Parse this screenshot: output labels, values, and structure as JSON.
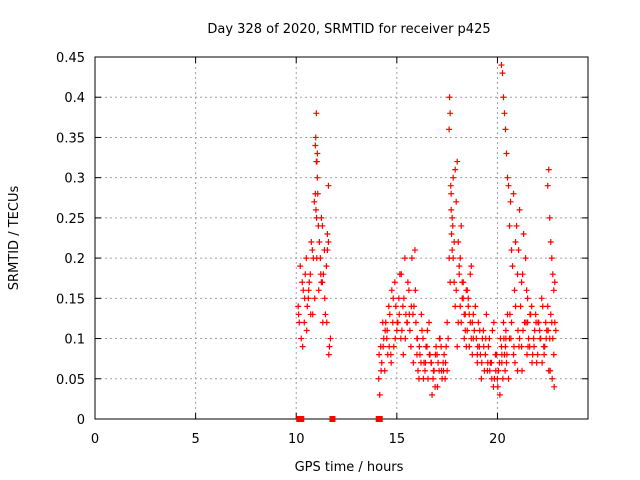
{
  "chart_data": {
    "type": "scatter",
    "title": "Day 328 of 2020, SRMTID for receiver p425",
    "xlabel": "GPS time / hours",
    "ylabel": "SRMTID / TECUs",
    "xlim": [
      0,
      24.5
    ],
    "ylim": [
      0,
      0.45
    ],
    "xticks": [
      0,
      5,
      10,
      15,
      20
    ],
    "xtick_labels": [
      "0",
      "5",
      "10",
      "15",
      "20"
    ],
    "yticks": [
      0,
      0.05,
      0.1,
      0.15,
      0.2,
      0.25,
      0.3,
      0.35,
      0.4,
      0.45
    ],
    "ytick_labels": [
      "0",
      "0.05",
      "0.1",
      "0.15",
      "0.2",
      "0.25",
      "0.3",
      "0.35",
      "0.4",
      "0.45"
    ],
    "grid": true,
    "marker": "plus",
    "color": "#ff0000",
    "gap_markers": {
      "description": "zero-value squares",
      "x": [
        10.15,
        10.25,
        11.8,
        14.1,
        14.15
      ],
      "y": [
        0,
        0,
        0,
        0,
        0
      ]
    },
    "series": [
      {
        "name": "SRMTID",
        "x": [
          10.1,
          10.2,
          10.3,
          10.4,
          10.5,
          10.6,
          10.7,
          10.8,
          10.9,
          11.0,
          11.1,
          11.2,
          11.3,
          11.4,
          11.5,
          11.6,
          11.7,
          10.15,
          10.25,
          10.35,
          10.45,
          10.55,
          10.65,
          10.75,
          10.85,
          10.95,
          11.05,
          11.15,
          11.25,
          11.35,
          11.45,
          11.55,
          11.65,
          10.12,
          10.32,
          10.52,
          10.72,
          10.92,
          11.12,
          11.32,
          11.52,
          10.42,
          10.62,
          10.82,
          11.02,
          11.22,
          11.42,
          11.62,
          10.95,
          10.97,
          11.0,
          11.03,
          11.05,
          11.07,
          10.98,
          11.01,
          11.55,
          11.6,
          11.25,
          11.3,
          14.1,
          14.2,
          14.3,
          14.4,
          14.5,
          14.6,
          14.7,
          14.8,
          14.9,
          15.0,
          15.1,
          15.2,
          15.3,
          15.4,
          15.5,
          15.6,
          15.7,
          15.8,
          15.9,
          16.0,
          14.15,
          14.25,
          14.35,
          14.45,
          14.55,
          14.65,
          14.75,
          14.85,
          14.95,
          15.05,
          15.15,
          15.25,
          15.35,
          15.45,
          15.55,
          15.65,
          15.75,
          15.85,
          15.95,
          14.12,
          14.32,
          14.52,
          14.72,
          14.92,
          15.12,
          15.32,
          15.52,
          15.72,
          15.92,
          14.22,
          14.42,
          14.62,
          14.82,
          15.02,
          15.22,
          15.42,
          15.62,
          15.82,
          16.0,
          16.1,
          16.2,
          16.3,
          16.4,
          16.5,
          16.6,
          16.7,
          16.8,
          16.9,
          17.0,
          17.1,
          17.2,
          17.3,
          17.4,
          17.5,
          16.05,
          16.15,
          16.25,
          16.35,
          16.45,
          16.55,
          16.65,
          16.75,
          16.85,
          16.95,
          17.05,
          17.15,
          17.25,
          17.35,
          17.45,
          16.02,
          16.22,
          16.42,
          16.62,
          16.82,
          17.02,
          17.22,
          17.42,
          16.12,
          16.32,
          16.52,
          16.72,
          16.92,
          17.12,
          17.32,
          17.5,
          17.6,
          17.7,
          17.8,
          17.9,
          18.0,
          18.1,
          18.2,
          18.3,
          18.4,
          18.5,
          18.6,
          18.7,
          18.8,
          18.9,
          19.0,
          17.55,
          17.65,
          17.75,
          17.85,
          17.95,
          18.05,
          18.15,
          18.25,
          18.35,
          18.45,
          18.55,
          18.65,
          18.75,
          18.85,
          18.95,
          17.6,
          17.62,
          17.65,
          17.68,
          17.7,
          17.72,
          17.75,
          17.78,
          17.8,
          17.85,
          17.9,
          17.95,
          18.0,
          18.05,
          18.1,
          18.15,
          18.2,
          18.25,
          18.3,
          18.35,
          18.4,
          18.45,
          18.5,
          18.55,
          18.6,
          18.65,
          18.7,
          18.75,
          18.8,
          19.0,
          19.1,
          19.2,
          19.3,
          19.4,
          19.5,
          19.6,
          19.7,
          19.8,
          19.9,
          20.0,
          20.1,
          20.2,
          19.05,
          19.15,
          19.25,
          19.35,
          19.45,
          19.55,
          19.65,
          19.75,
          19.85,
          19.95,
          20.05,
          20.15,
          19.02,
          19.22,
          19.42,
          19.62,
          19.82,
          20.02,
          20.22,
          19.12,
          19.32,
          19.52,
          19.72,
          19.92,
          20.12,
          20.2,
          20.3,
          20.4,
          20.5,
          20.6,
          20.7,
          20.8,
          20.9,
          21.0,
          21.1,
          21.2,
          21.3,
          21.4,
          21.5,
          20.25,
          20.35,
          20.45,
          20.55,
          20.65,
          20.75,
          20.85,
          20.95,
          21.05,
          21.15,
          21.25,
          21.35,
          21.45,
          20.3,
          20.32,
          20.35,
          20.38,
          20.4,
          20.42,
          20.45,
          20.5,
          20.55,
          20.6,
          20.7,
          20.8,
          20.9,
          21.0,
          21.1,
          21.2,
          20.22,
          20.42,
          20.62,
          20.82,
          21.02,
          21.22,
          21.42,
          20.27,
          20.47,
          20.67,
          20.87,
          21.07,
          21.27,
          21.47,
          21.5,
          21.6,
          21.7,
          21.8,
          21.9,
          22.0,
          22.1,
          22.2,
          22.3,
          22.4,
          22.5,
          22.6,
          22.7,
          22.8,
          22.9,
          21.55,
          21.65,
          21.75,
          21.85,
          21.95,
          22.05,
          22.15,
          22.25,
          22.35,
          22.45,
          22.55,
          22.65,
          22.75,
          22.85,
          21.52,
          21.72,
          21.92,
          22.12,
          22.32,
          22.52,
          22.72,
          21.62,
          21.82,
          22.02,
          22.22,
          22.42,
          22.62,
          22.82,
          22.5,
          22.55,
          22.6,
          22.65,
          22.7,
          22.75,
          22.8,
          22.85
        ],
        "y": [
          0.14,
          0.19,
          0.17,
          0.12,
          0.2,
          0.15,
          0.18,
          0.21,
          0.27,
          0.32,
          0.24,
          0.2,
          0.17,
          0.21,
          0.19,
          0.22,
          0.1,
          0.12,
          0.1,
          0.16,
          0.18,
          0.14,
          0.17,
          0.22,
          0.2,
          0.28,
          0.33,
          0.22,
          0.17,
          0.18,
          0.13,
          0.21,
          0.09,
          0.13,
          0.09,
          0.11,
          0.13,
          0.15,
          0.16,
          0.12,
          0.12,
          0.15,
          0.16,
          0.13,
          0.2,
          0.18,
          0.15,
          0.08,
          0.34,
          0.35,
          0.38,
          0.32,
          0.3,
          0.28,
          0.26,
          0.25,
          0.23,
          0.29,
          0.25,
          0.24,
          0.05,
          0.09,
          0.12,
          0.06,
          0.1,
          0.14,
          0.08,
          0.12,
          0.17,
          0.11,
          0.15,
          0.1,
          0.14,
          0.2,
          0.12,
          0.16,
          0.09,
          0.13,
          0.21,
          0.1,
          0.03,
          0.07,
          0.1,
          0.12,
          0.08,
          0.13,
          0.16,
          0.09,
          0.14,
          0.12,
          0.18,
          0.11,
          0.15,
          0.13,
          0.17,
          0.11,
          0.2,
          0.14,
          0.12,
          0.08,
          0.09,
          0.11,
          0.07,
          0.1,
          0.13,
          0.08,
          0.12,
          0.14,
          0.16,
          0.06,
          0.11,
          0.09,
          0.15,
          0.12,
          0.18,
          0.1,
          0.13,
          0.07,
          0.08,
          0.05,
          0.07,
          0.1,
          0.06,
          0.09,
          0.12,
          0.07,
          0.05,
          0.04,
          0.08,
          0.06,
          0.09,
          0.07,
          0.05,
          0.06,
          0.06,
          0.08,
          0.11,
          0.07,
          0.09,
          0.05,
          0.08,
          0.03,
          0.06,
          0.09,
          0.07,
          0.1,
          0.05,
          0.08,
          0.09,
          0.1,
          0.13,
          0.07,
          0.08,
          0.06,
          0.04,
          0.06,
          0.07,
          0.09,
          0.05,
          0.11,
          0.07,
          0.08,
          0.1,
          0.06,
          0.12,
          0.2,
          0.28,
          0.3,
          0.14,
          0.09,
          0.18,
          0.24,
          0.15,
          0.11,
          0.16,
          0.13,
          0.19,
          0.1,
          0.14,
          0.08,
          0.1,
          0.17,
          0.25,
          0.22,
          0.16,
          0.12,
          0.2,
          0.17,
          0.13,
          0.09,
          0.15,
          0.18,
          0.12,
          0.11,
          0.1,
          0.36,
          0.4,
          0.38,
          0.29,
          0.26,
          0.23,
          0.21,
          0.24,
          0.2,
          0.17,
          0.31,
          0.27,
          0.32,
          0.22,
          0.19,
          0.14,
          0.12,
          0.15,
          0.17,
          0.1,
          0.13,
          0.16,
          0.11,
          0.14,
          0.09,
          0.12,
          0.1,
          0.08,
          0.13,
          0.07,
          0.09,
          0.05,
          0.11,
          0.08,
          0.06,
          0.1,
          0.07,
          0.04,
          0.08,
          0.05,
          0.07,
          0.09,
          0.12,
          0.08,
          0.1,
          0.06,
          0.13,
          0.09,
          0.07,
          0.11,
          0.05,
          0.08,
          0.06,
          0.1,
          0.09,
          0.07,
          0.1,
          0.06,
          0.12,
          0.04,
          0.08,
          0.11,
          0.09,
          0.07,
          0.05,
          0.06,
          0.03,
          0.44,
          0.4,
          0.36,
          0.3,
          0.24,
          0.21,
          0.28,
          0.22,
          0.18,
          0.26,
          0.17,
          0.23,
          0.2,
          0.15,
          0.43,
          0.38,
          0.33,
          0.29,
          0.27,
          0.19,
          0.16,
          0.24,
          0.21,
          0.14,
          0.18,
          0.12,
          0.16,
          0.12,
          0.1,
          0.08,
          0.06,
          0.09,
          0.11,
          0.07,
          0.13,
          0.05,
          0.1,
          0.12,
          0.08,
          0.14,
          0.06,
          0.1,
          0.09,
          0.07,
          0.1,
          0.13,
          0.09,
          0.11,
          0.06,
          0.12,
          0.05,
          0.08,
          0.1,
          0.07,
          0.09,
          0.11,
          0.08,
          0.12,
          0.09,
          0.14,
          0.1,
          0.13,
          0.08,
          0.11,
          0.15,
          0.09,
          0.12,
          0.14,
          0.1,
          0.12,
          0.08,
          0.11,
          0.1,
          0.13,
          0.08,
          0.11,
          0.07,
          0.12,
          0.1,
          0.14,
          0.09,
          0.11,
          0.06,
          0.13,
          0.1,
          0.12,
          0.09,
          0.07,
          0.12,
          0.1,
          0.08,
          0.11,
          0.05,
          0.13,
          0.09,
          0.12,
          0.07,
          0.1,
          0.06,
          0.04,
          0.29,
          0.31,
          0.25,
          0.22,
          0.2,
          0.18,
          0.16,
          0.17
        ]
      }
    ]
  }
}
